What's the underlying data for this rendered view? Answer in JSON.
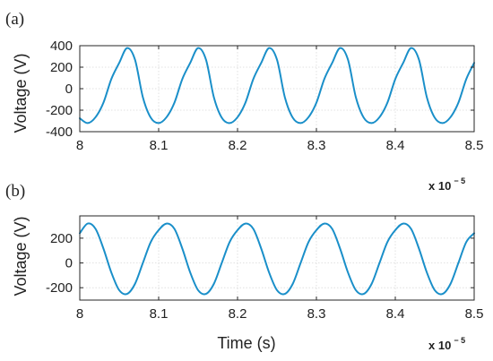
{
  "chart_data": [
    {
      "type": "line",
      "panel_label": "(a)",
      "title": "",
      "xlabel": "",
      "ylabel": "Voltage (V)",
      "xlim": [
        8.0,
        8.5
      ],
      "ylim": [
        -400,
        400
      ],
      "x_ticks": [
        8,
        8.1,
        8.2,
        8.3,
        8.4,
        8.5
      ],
      "x_tick_labels": [
        "8",
        "8.1",
        "8.2",
        "8.3",
        "8.4",
        "8.5"
      ],
      "y_ticks": [
        400,
        200,
        0,
        -200,
        -400
      ],
      "y_tick_labels": [
        "400",
        "200",
        "0",
        "-200",
        "-400"
      ],
      "x_multiplier": {
        "base": "x 10",
        "exponent": "− 5"
      },
      "grid": true,
      "legend": "none",
      "series": [
        {
          "color": "#1a8fc9",
          "x": [
            8.0,
            8.01,
            8.02,
            8.03,
            8.04,
            8.05,
            8.06,
            8.07,
            8.08,
            8.09,
            8.1,
            8.11,
            8.12,
            8.13,
            8.14,
            8.15,
            8.16,
            8.17,
            8.18,
            8.19,
            8.2,
            8.21,
            8.22,
            8.23,
            8.24,
            8.25,
            8.26,
            8.27,
            8.28,
            8.29,
            8.3,
            8.31,
            8.32,
            8.33,
            8.34,
            8.35,
            8.36,
            8.37,
            8.38,
            8.39,
            8.4,
            8.41,
            8.42,
            8.43,
            8.44,
            8.45,
            8.46,
            8.47,
            8.48,
            8.49,
            8.5
          ],
          "y": [
            -275,
            -320,
            -265,
            -130,
            90,
            240,
            378,
            270,
            -80,
            -270,
            -320,
            -265,
            -130,
            90,
            240,
            378,
            270,
            -80,
            -270,
            -320,
            -265,
            -130,
            90,
            240,
            378,
            270,
            -80,
            -270,
            -320,
            -265,
            -130,
            90,
            240,
            378,
            270,
            -80,
            -270,
            -320,
            -265,
            -130,
            90,
            240,
            378,
            270,
            -80,
            -270,
            -320,
            -265,
            -130,
            90,
            240
          ]
        }
      ]
    },
    {
      "type": "line",
      "panel_label": "(b)",
      "title": "",
      "xlabel": "Time (s)",
      "ylabel": "Voltage (V)",
      "xlim": [
        8.0,
        8.5
      ],
      "ylim": [
        -300,
        380
      ],
      "x_ticks": [
        8,
        8.1,
        8.2,
        8.3,
        8.4,
        8.5
      ],
      "x_tick_labels": [
        "8",
        "8.1",
        "8.2",
        "8.3",
        "8.4",
        "8.5"
      ],
      "y_ticks": [
        200,
        0,
        -200
      ],
      "y_tick_labels": [
        "200",
        "0",
        "-200"
      ],
      "x_multiplier": {
        "base": "x 10",
        "exponent": "− 5"
      },
      "grid": true,
      "legend": "none",
      "series": [
        {
          "color": "#1a8fc9",
          "x": [
            8.0,
            8.01,
            8.02,
            8.03,
            8.04,
            8.05,
            8.06,
            8.07,
            8.08,
            8.09,
            8.1,
            8.11,
            8.12,
            8.13,
            8.14,
            8.15,
            8.16,
            8.17,
            8.18,
            8.19,
            8.2,
            8.21,
            8.22,
            8.23,
            8.24,
            8.25,
            8.26,
            8.27,
            8.28,
            8.29,
            8.3,
            8.31,
            8.32,
            8.33,
            8.34,
            8.35,
            8.36,
            8.37,
            8.38,
            8.39,
            8.4,
            8.41,
            8.42,
            8.43,
            8.44,
            8.45,
            8.46,
            8.47,
            8.48,
            8.49,
            8.5
          ],
          "y": [
            240,
            318,
            275,
            116,
            -77,
            -220,
            -250,
            -169,
            0,
            169,
            265,
            318,
            275,
            116,
            -77,
            -220,
            -250,
            -169,
            0,
            169,
            265,
            318,
            275,
            116,
            -77,
            -220,
            -250,
            -169,
            0,
            169,
            265,
            318,
            275,
            116,
            -77,
            -220,
            -250,
            -169,
            0,
            169,
            265,
            318,
            275,
            116,
            -77,
            -220,
            -250,
            -169,
            0,
            169,
            240
          ]
        }
      ]
    }
  ]
}
